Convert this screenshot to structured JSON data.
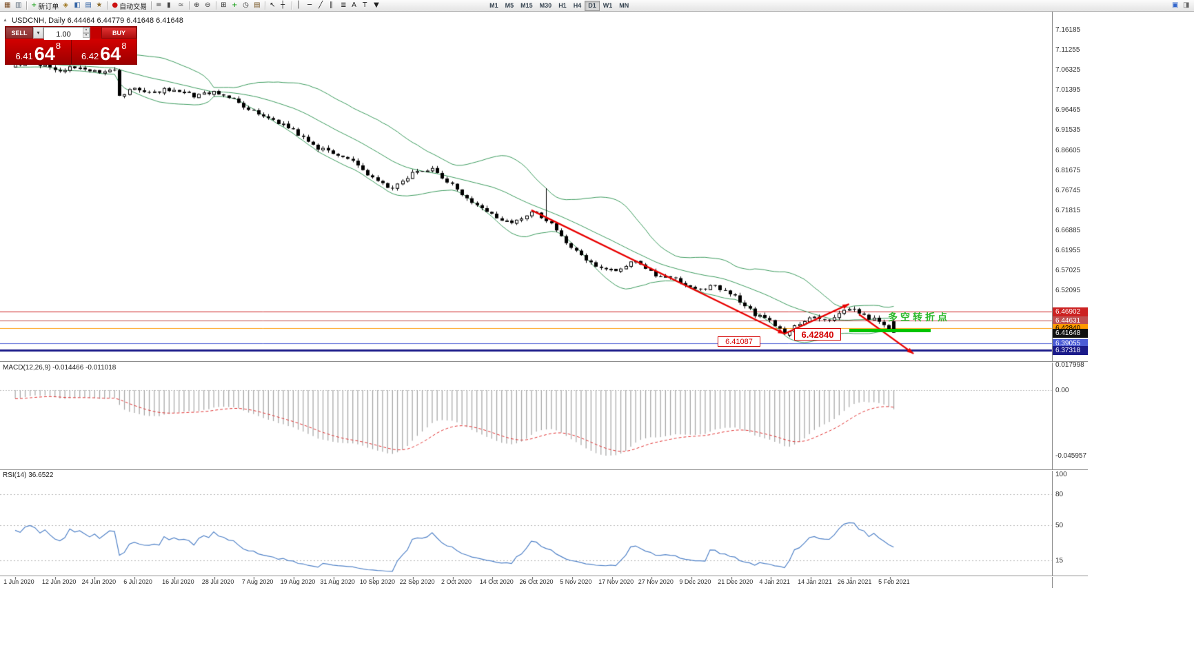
{
  "colors": {
    "accent_red": "#cc0000",
    "band_green": "#3a9a5c",
    "arrow_red": "#e80000",
    "macd_bar": "#a8a8a8",
    "macd_signal": "#e03030",
    "rsi_blue": "#4f81c7",
    "highlight_green": "#00c400"
  },
  "icons": {
    "collapse": "▲",
    "dropdown": "▾",
    "spin_up": "▴",
    "spin_down": "▾"
  },
  "toolbar": {
    "items": [
      {
        "name": "new-chart",
        "glyph": "▦",
        "color": "#7a4a1f"
      },
      {
        "name": "chart-profiles",
        "glyph": "▥",
        "color": "#5a6a7a"
      },
      {
        "sep": true
      },
      {
        "name": "new-order",
        "glyph": "+",
        "color": "#0a9a0a",
        "label": "新订单"
      },
      {
        "name": "navigator",
        "glyph": "◈",
        "color": "#a07820"
      },
      {
        "name": "market-watch",
        "glyph": "◧",
        "color": "#3565a5"
      },
      {
        "name": "terminal",
        "glyph": "▤",
        "color": "#3565a5"
      },
      {
        "name": "strategy-tester",
        "glyph": "★",
        "color": "#8a6a2a"
      },
      {
        "sep": true
      },
      {
        "name": "auto-trading",
        "glyph": "●",
        "color": "#cc1111",
        "label": "自动交易"
      },
      {
        "sep": true
      },
      {
        "name": "bar-chart-mode",
        "glyph": "≡",
        "color": "#444444"
      },
      {
        "name": "candlestick-mode",
        "glyph": "▮",
        "color": "#444444"
      },
      {
        "name": "line-chart-mode",
        "glyph": "≈",
        "color": "#444444"
      },
      {
        "sep": true
      },
      {
        "name": "zoom-in",
        "glyph": "⊕",
        "color": "#333333"
      },
      {
        "name": "zoom-out",
        "glyph": "⊖",
        "color": "#333333"
      },
      {
        "sep": true
      },
      {
        "name": "tile-windows",
        "glyph": "⊞",
        "color": "#333333"
      },
      {
        "name": "add-indicator",
        "glyph": "+",
        "color": "#0a9a0a"
      },
      {
        "name": "periods",
        "glyph": "◷",
        "color": "#333333"
      },
      {
        "name": "templates",
        "glyph": "▤",
        "color": "#7a5a2a"
      },
      {
        "sep": true
      },
      {
        "name": "cursor-tool",
        "glyph": "↖",
        "color": "#222222"
      },
      {
        "name": "crosshair-tool",
        "glyph": "┼",
        "color": "#222222"
      },
      {
        "sep": true
      },
      {
        "name": "vertical-line-tool",
        "glyph": "│",
        "color": "#222222"
      },
      {
        "name": "horizontal-line-tool",
        "glyph": "─",
        "color": "#222222"
      },
      {
        "name": "trendline-tool",
        "glyph": "╱",
        "color": "#222222"
      },
      {
        "name": "channel-tool",
        "glyph": "∥",
        "color": "#222222"
      },
      {
        "name": "fibonacci-tool",
        "glyph": "≣",
        "color": "#222222"
      },
      {
        "name": "text-tool",
        "glyph": "A",
        "color": "#222222"
      },
      {
        "name": "label-tool",
        "glyph": "T",
        "color": "#222222"
      },
      {
        "name": "arrows-tool",
        "glyph": "▼",
        "color": "#222222"
      }
    ],
    "timeframes": [
      "M1",
      "M5",
      "M15",
      "M30",
      "H1",
      "H4",
      "D1",
      "W1",
      "MN"
    ],
    "active_timeframe": "D1",
    "right_items": [
      {
        "name": "chart-shift",
        "glyph": "▣",
        "color": "#3366cc"
      },
      {
        "name": "auto-scroll",
        "glyph": "◨",
        "color": "#666666"
      }
    ]
  },
  "chart_header": {
    "symbol_line": "USDCNH, Daily 6.44464 6.44779 6.41648 6.41648"
  },
  "trade_panel": {
    "sell_label": "SELL",
    "buy_label": "BUY",
    "volume": "1.00",
    "sell_price_prefix": "6.41",
    "sell_price_main": "64",
    "sell_price_sup": "8",
    "buy_price_prefix": "6.42",
    "buy_price_main": "64",
    "buy_price_sup": "8"
  },
  "annotations": {
    "low_label": "6.41087",
    "retest_label": "6.42840",
    "turning_point_label": "多空转折点"
  },
  "price_axis_labels": [
    "7.16185",
    "7.11255",
    "7.06325",
    "7.01395",
    "6.96465",
    "6.91535",
    "6.86605",
    "6.81675",
    "6.76745",
    "6.71815",
    "6.66885",
    "6.61955",
    "6.57025",
    "6.52095"
  ],
  "price_tags": [
    {
      "label": "6.46902",
      "price": 6.46902,
      "bg": "#cc2222",
      "fg": "#ffffff",
      "line": "#cc2222"
    },
    {
      "label": "6.44631",
      "price": 6.44631,
      "bg": "#c05050",
      "fg": "#ffffff",
      "line": "#c05050"
    },
    {
      "label": "6.42840",
      "price": 6.4284,
      "bg": "#ff9900",
      "fg": "#000000",
      "line": "#ff9900"
    },
    {
      "label": "6.41648",
      "price": 6.41648,
      "bg": "#111111",
      "fg": "#ffffff",
      "line": null
    },
    {
      "label": "6.39055",
      "price": 6.39055,
      "bg": "#4b5cd6",
      "fg": "#ffffff",
      "line": "#4b5cd6"
    },
    {
      "label": "6.37318",
      "price": 6.37318,
      "bg": "#1b1b8a",
      "fg": "#ffffff",
      "line": "#1b1b8a"
    }
  ],
  "macd_panel": {
    "label": "MACD(12,26,9) -0.014466 -0.011018",
    "axis": [
      "0.017998",
      "0.00",
      "-0.045957"
    ]
  },
  "rsi_panel": {
    "label": "RSI(14) 36.6522",
    "axis": [
      "100",
      "80",
      "50",
      "15"
    ]
  },
  "time_axis": [
    "1 Jun 2020",
    "12 Jun 2020",
    "24 Jun 2020",
    "6 Jul 2020",
    "16 Jul 2020",
    "28 Jul 2020",
    "7 Aug 2020",
    "19 Aug 2020",
    "31 Aug 2020",
    "10 Sep 2020",
    "22 Sep 2020",
    "2 Oct 2020",
    "14 Oct 2020",
    "26 Oct 2020",
    "5 Nov 2020",
    "17 Nov 2020",
    "27 Nov 2020",
    "9 Dec 2020",
    "21 Dec 2020",
    "4 Jan 2021",
    "14 Jan 2021",
    "26 Jan 2021",
    "5 Feb 2021"
  ],
  "chart_data": {
    "type": "candlestick",
    "symbol": "USDCNH",
    "timeframe": "Daily",
    "candle_count": 178,
    "visible_price_range": [
      6.373,
      7.18
    ],
    "ohlc_current": {
      "open": 6.44464,
      "high": 6.44779,
      "low": 6.41648,
      "close": 6.41648
    },
    "key_low": 6.41087,
    "indicators": {
      "bollinger": {
        "period": 20,
        "deviation": 2,
        "color": "#3a9a5c"
      },
      "macd": {
        "fast": 12,
        "slow": 26,
        "signal": 9,
        "current_main": -0.014466,
        "current_signal": -0.011018
      },
      "rsi": {
        "period": 14,
        "current": 36.6522,
        "levels": [
          80,
          50,
          15
        ]
      }
    },
    "trend_anchors": [
      [
        0,
        7.072
      ],
      [
        4,
        7.079
      ],
      [
        8,
        7.062
      ],
      [
        12,
        7.07
      ],
      [
        16,
        7.058
      ],
      [
        20,
        7.061
      ],
      [
        21,
        6.998
      ],
      [
        24,
        7.016
      ],
      [
        28,
        7.008
      ],
      [
        32,
        7.018
      ],
      [
        36,
        6.998
      ],
      [
        40,
        7.008
      ],
      [
        44,
        6.988
      ],
      [
        48,
        6.962
      ],
      [
        52,
        6.94
      ],
      [
        56,
        6.916
      ],
      [
        60,
        6.878
      ],
      [
        64,
        6.854
      ],
      [
        68,
        6.836
      ],
      [
        72,
        6.796
      ],
      [
        76,
        6.768
      ],
      [
        80,
        6.812
      ],
      [
        84,
        6.822
      ],
      [
        88,
        6.778
      ],
      [
        92,
        6.735
      ],
      [
        96,
        6.704
      ],
      [
        100,
        6.682
      ],
      [
        104,
        6.718
      ],
      [
        108,
        6.688
      ],
      [
        112,
        6.622
      ],
      [
        116,
        6.586
      ],
      [
        121,
        6.568
      ],
      [
        125,
        6.596
      ],
      [
        129,
        6.556
      ],
      [
        133,
        6.546
      ],
      [
        137,
        6.52
      ],
      [
        141,
        6.532
      ],
      [
        145,
        6.504
      ],
      [
        149,
        6.462
      ],
      [
        152,
        6.448
      ],
      [
        155,
        6.414
      ],
      [
        158,
        6.438
      ],
      [
        161,
        6.456
      ],
      [
        164,
        6.448
      ],
      [
        167,
        6.468
      ],
      [
        169,
        6.476
      ],
      [
        171,
        6.458
      ],
      [
        173,
        6.45
      ],
      [
        175,
        6.438
      ],
      [
        177,
        6.4165
      ]
    ],
    "arrows": [
      {
        "from": [
          104,
          6.718
        ],
        "to": [
          155,
          6.414
        ]
      },
      {
        "from": [
          155,
          6.414
        ],
        "to": [
          168,
          6.487
        ]
      },
      {
        "from": [
          170,
          6.462
        ],
        "to": [
          181,
          6.365
        ]
      }
    ],
    "support_segment": {
      "price": 6.4225,
      "from_i": 168,
      "to_i": 184.5
    }
  }
}
